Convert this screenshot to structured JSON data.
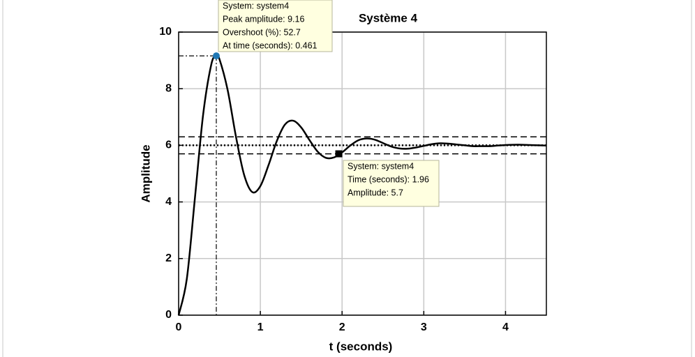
{
  "chart_data": {
    "type": "line",
    "title": "Système 4",
    "x_label": "t (seconds)",
    "y_label": "Amplitude",
    "xlim": [
      0,
      4.5
    ],
    "xticks": [
      0,
      1,
      2,
      3,
      4
    ],
    "ylim": [
      0,
      10
    ],
    "yticks": [
      0,
      2,
      4,
      6,
      8,
      10
    ],
    "grid": true,
    "color": "#000000",
    "x": [
      0,
      0.1,
      0.2,
      0.3,
      0.4,
      0.461,
      0.5,
      0.6,
      0.7,
      0.8,
      0.9,
      1.0,
      1.1,
      1.2,
      1.3,
      1.4,
      1.5,
      1.6,
      1.7,
      1.8,
      1.9,
      2.0,
      2.1,
      2.2,
      2.3,
      2.4,
      2.5,
      2.6,
      2.7,
      2.8,
      2.9,
      3.0,
      3.1,
      3.2,
      3.3,
      3.4,
      3.5,
      3.6,
      3.7,
      3.8,
      3.9,
      4.0,
      4.1,
      4.2,
      4.3,
      4.4,
      4.5
    ],
    "values": [
      0,
      1.28,
      4.16,
      7.09,
      8.86,
      9.16,
      9.04,
      7.95,
      6.33,
      4.97,
      4.35,
      4.56,
      5.3,
      6.14,
      6.73,
      6.87,
      6.63,
      6.19,
      5.78,
      5.56,
      5.57,
      5.75,
      5.99,
      6.18,
      6.24,
      6.2,
      6.08,
      5.96,
      5.89,
      5.88,
      5.92,
      5.98,
      6.04,
      6.07,
      6.06,
      6.03,
      6.0,
      5.97,
      5.97,
      5.97,
      5.99,
      6.01,
      6.02,
      6.02,
      6.01,
      6.0,
      5.99
    ],
    "final_value": 6,
    "settling_bounds": [
      5.7,
      6.3
    ],
    "data_tips": [
      {
        "marker": "circle",
        "color": "#1f77b4",
        "x": 0.461,
        "y": 9.16,
        "lines": [
          "System: system4",
          "Peak amplitude: 9.16",
          "Overshoot (%): 52.7",
          "At time (seconds): 0.461"
        ]
      },
      {
        "marker": "square",
        "color": "#000000",
        "x": 1.96,
        "y": 5.7,
        "lines": [
          "System: system4",
          "Time (seconds): 1.96",
          "Amplitude: 5.7"
        ]
      }
    ]
  }
}
